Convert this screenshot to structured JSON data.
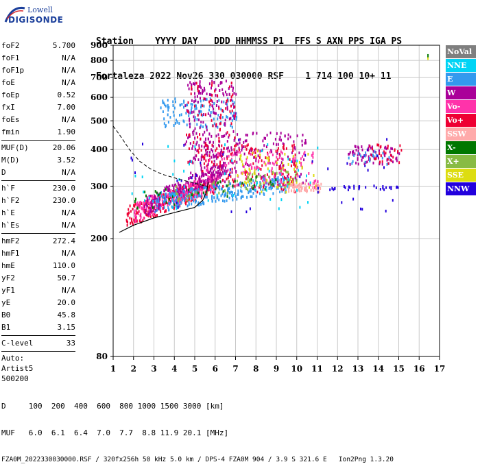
{
  "logo": {
    "line1": "Lowell",
    "line2": "DIGISONDE"
  },
  "header": {
    "labels": "Station    YYYY DAY   DDD HHMMSS P1  FFS S AXN PPS IGA PS",
    "values": "Fortaleza 2022 Nov26 330 030000 RSF    1 714 100 10+ 11"
  },
  "params": {
    "group1": [
      {
        "name": "foF2",
        "value": "5.700"
      },
      {
        "name": "foF1",
        "value": "N/A"
      },
      {
        "name": "foF1p",
        "value": "N/A"
      },
      {
        "name": "foE",
        "value": "N/A"
      },
      {
        "name": "foEp",
        "value": "0.52"
      },
      {
        "name": "fxI",
        "value": "7.00"
      },
      {
        "name": "foEs",
        "value": "N/A"
      },
      {
        "name": "fmin",
        "value": "1.90"
      }
    ],
    "group2": [
      {
        "name": "MUF(D)",
        "value": "20.06"
      },
      {
        "name": "M(D)",
        "value": "3.52"
      },
      {
        "name": "D",
        "value": "N/A"
      }
    ],
    "group3": [
      {
        "name": "h`F",
        "value": "230.0"
      },
      {
        "name": "h`F2",
        "value": "230.0"
      },
      {
        "name": "h`E",
        "value": "N/A"
      },
      {
        "name": "h`Es",
        "value": "N/A"
      }
    ],
    "group4": [
      {
        "name": "hmF2",
        "value": "272.4"
      },
      {
        "name": "hmF1",
        "value": "N/A"
      },
      {
        "name": "hmE",
        "value": "110.0"
      },
      {
        "name": "yF2",
        "value": "50.7"
      },
      {
        "name": "yF1",
        "value": "N/A"
      },
      {
        "name": "yE",
        "value": "20.0"
      },
      {
        "name": "B0",
        "value": "45.8"
      },
      {
        "name": "B1",
        "value": "3.15"
      }
    ],
    "group5": [
      {
        "name": "C-level",
        "value": "33"
      }
    ],
    "auto": [
      "Auto:",
      "Artist5",
      "500200"
    ]
  },
  "legend": [
    {
      "label": "NoVal",
      "color": "#7f7f7f"
    },
    {
      "label": "NNE",
      "color": "#00d4f5"
    },
    {
      "label": "E",
      "color": "#3399ee"
    },
    {
      "label": "W",
      "color": "#aa0099"
    },
    {
      "label": "Vo-",
      "color": "#ff33aa"
    },
    {
      "label": "Vo+",
      "color": "#ee0033"
    },
    {
      "label": "SSW",
      "color": "#ffaaaa"
    },
    {
      "label": "X-",
      "color": "#007700"
    },
    {
      "label": "X+",
      "color": "#88bb44"
    },
    {
      "label": "SSE",
      "color": "#dddd11"
    },
    {
      "label": "NNW",
      "color": "#2200dd"
    }
  ],
  "footer": {
    "line1": "D     100  200  400  600  800 1000 1500 3000 [km]",
    "line2": "MUF   6.0  6.1  6.4  7.0  7.7  8.8 11.9 20.1 [MHz]",
    "line3": "FZA0M_2022330030000.RSF / 320fx256h 50 kHz 5.0 km / DPS-4 FZA0M 904 / 3.9 S 321.6 E   Ion2Png 1.3.20"
  },
  "chart_data": {
    "type": "scatter",
    "title": "",
    "xlabel": "",
    "ylabel": "",
    "xlim": [
      1,
      17
    ],
    "ylim": [
      80,
      900
    ],
    "yscale": "log",
    "xticks": [
      1,
      2,
      3,
      4,
      5,
      6,
      7,
      8,
      9,
      10,
      11,
      12,
      13,
      14,
      15,
      16,
      17
    ],
    "yticks": [
      80,
      200,
      300,
      400,
      500,
      600,
      700,
      800,
      900
    ],
    "grid": true,
    "legend_position": "right",
    "echo_clusters": [
      {
        "name": "F-trace",
        "color": "#ee0033",
        "xrange": [
          1.6,
          6.0
        ],
        "hrange": [
          230,
          330
        ],
        "density": 260
      },
      {
        "name": "F-trace",
        "color": "#ff33aa",
        "xrange": [
          2.0,
          6.2
        ],
        "hrange": [
          240,
          340
        ],
        "density": 260
      },
      {
        "name": "F-trace",
        "color": "#aa0099",
        "xrange": [
          2.5,
          6.5
        ],
        "hrange": [
          250,
          380
        ],
        "density": 200
      },
      {
        "name": "F-trace",
        "color": "#3399ee",
        "xrange": [
          3.0,
          9.5
        ],
        "hrange": [
          260,
          320
        ],
        "density": 260
      },
      {
        "name": "F-spread",
        "color": "#aa0099",
        "xrange": [
          5.0,
          10.5
        ],
        "hrange": [
          300,
          460
        ],
        "density": 180
      },
      {
        "name": "F-spread",
        "color": "#ee0033",
        "xrange": [
          5.0,
          10.0
        ],
        "hrange": [
          290,
          420
        ],
        "density": 140
      },
      {
        "name": "F-spread",
        "color": "#ff33aa",
        "xrange": [
          5.5,
          11.0
        ],
        "hrange": [
          300,
          400
        ],
        "density": 120
      },
      {
        "name": "high",
        "color": "#3399ee",
        "xrange": [
          3.3,
          7.1
        ],
        "hrange": [
          480,
          600
        ],
        "density": 120
      },
      {
        "name": "vertical",
        "color": "#aa0099",
        "xrange": [
          4.5,
          7.0
        ],
        "hrange": [
          320,
          690
        ],
        "density": 200
      },
      {
        "name": "vertical",
        "color": "#ee0033",
        "xrange": [
          4.5,
          7.0
        ],
        "hrange": [
          350,
          680
        ],
        "density": 80
      },
      {
        "name": "SSW",
        "color": "#ffaaaa",
        "xrange": [
          9.5,
          11.2
        ],
        "hrange": [
          290,
          310
        ],
        "density": 60
      },
      {
        "name": "SSE",
        "color": "#dddd11",
        "xrange": [
          7.0,
          11.0
        ],
        "hrange": [
          290,
          400
        ],
        "density": 60
      },
      {
        "name": "X",
        "color": "#88bb44",
        "xrange": [
          4.0,
          10.0
        ],
        "hrange": [
          280,
          340
        ],
        "density": 60
      },
      {
        "name": "X",
        "color": "#007700",
        "xrange": [
          2.0,
          9.0
        ],
        "hrange": [
          260,
          330
        ],
        "density": 40
      },
      {
        "name": "NNE",
        "color": "#00d4f5",
        "xrange": [
          1.8,
          11.0
        ],
        "hrange": [
          250,
          420
        ],
        "density": 50
      },
      {
        "name": "NNW",
        "color": "#2200dd",
        "xrange": [
          1.8,
          15.0
        ],
        "hrange": [
          240,
          440
        ],
        "density": 40
      },
      {
        "name": "far",
        "color": "#aa0099",
        "xrange": [
          12.5,
          15.0
        ],
        "hrange": [
          360,
          420
        ],
        "density": 70
      },
      {
        "name": "far",
        "color": "#ee0033",
        "xrange": [
          13.5,
          15.2
        ],
        "hrange": [
          360,
          420
        ],
        "density": 30
      },
      {
        "name": "far",
        "color": "#2200dd",
        "xrange": [
          11.5,
          15.0
        ],
        "hrange": [
          295,
          305
        ],
        "density": 30
      },
      {
        "name": "far",
        "color": "#3399ee",
        "xrange": [
          12.5,
          14.5
        ],
        "hrange": [
          360,
          400
        ],
        "density": 20
      }
    ],
    "profile_curve": {
      "x": [
        1.3,
        2.0,
        3.0,
        4.0,
        5.0,
        5.4,
        5.6,
        5.65
      ],
      "h": [
        210,
        222,
        235,
        245,
        255,
        270,
        290,
        310
      ]
    },
    "dashed_curve": {
      "x": [
        1.0,
        1.3,
        1.8,
        2.3,
        2.8,
        3.4,
        4.2,
        5.0,
        5.6
      ],
      "h": [
        480,
        450,
        400,
        365,
        345,
        330,
        318,
        308,
        300
      ]
    }
  }
}
